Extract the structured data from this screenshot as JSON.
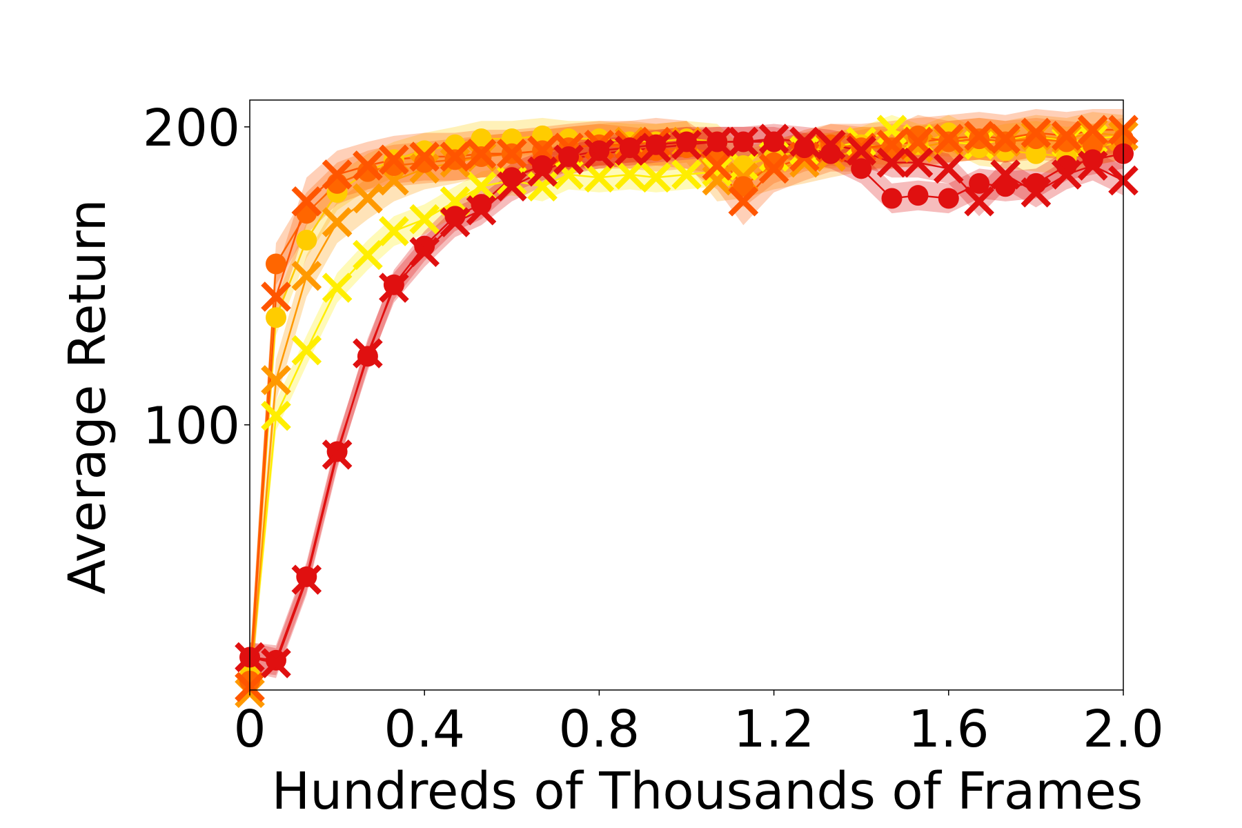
{
  "chart_data": {
    "type": "line",
    "title": "",
    "xlabel": "Hundreds of Thousands of Frames",
    "ylabel": "Average Return",
    "xlim": [
      0,
      2.0
    ],
    "ylim": [
      11,
      209
    ],
    "x_ticks": [
      0,
      0.4,
      0.8,
      1.2,
      1.6,
      2.0
    ],
    "x_tick_labels": [
      "0",
      "0.4",
      "0.8",
      "1.2",
      "1.6",
      "2.0"
    ],
    "y_ticks": [
      100,
      200
    ],
    "y_tick_labels": [
      "100",
      "200"
    ],
    "grid": false,
    "legend": "none",
    "series": [
      {
        "color": "#ffee00",
        "marker": "x",
        "x": [
          0,
          0.06,
          0.13,
          0.2,
          0.27,
          0.33,
          0.4,
          0.47,
          0.53,
          0.6,
          0.67,
          0.73,
          0.8,
          0.87,
          0.93,
          1.0,
          1.07,
          1.13,
          1.2,
          1.27,
          1.33,
          1.4,
          1.47,
          1.53,
          1.6,
          1.67,
          1.73,
          1.8,
          1.87,
          1.93,
          2.0
        ],
        "y": [
          12,
          103,
          125,
          146,
          157,
          165,
          169,
          175,
          180,
          182,
          180,
          184,
          183,
          184,
          183,
          184,
          185,
          187,
          190,
          192,
          193,
          195,
          199,
          196,
          195,
          194,
          196,
          197,
          195,
          196,
          197
        ],
        "band": 5
      },
      {
        "color": "#ffcc00",
        "marker": "o",
        "x": [
          0,
          0.06,
          0.13,
          0.2,
          0.27,
          0.33,
          0.4,
          0.47,
          0.53,
          0.6,
          0.67,
          0.73,
          0.8,
          0.87,
          0.93,
          1.0,
          1.07,
          1.13,
          1.2,
          1.27,
          1.33,
          1.4,
          1.47,
          1.53,
          1.6,
          1.67,
          1.73,
          1.8,
          1.87,
          1.93,
          2.0
        ],
        "y": [
          16,
          136,
          162,
          178,
          185,
          189,
          192,
          194,
          196,
          196,
          197,
          196,
          196,
          195,
          195,
          196,
          195,
          187,
          190,
          192,
          192,
          194,
          193,
          194,
          198,
          193,
          192,
          191,
          190,
          193,
          195
        ],
        "band": 6
      },
      {
        "color": "#ff9900",
        "marker": "x",
        "x": [
          0,
          0.06,
          0.13,
          0.2,
          0.27,
          0.33,
          0.4,
          0.47,
          0.53,
          0.6,
          0.67,
          0.73,
          0.8,
          0.87,
          0.93,
          1.0,
          1.07,
          1.13,
          1.2,
          1.27,
          1.33,
          1.4,
          1.47,
          1.53,
          1.6,
          1.67,
          1.73,
          1.8,
          1.87,
          1.93,
          2.0
        ],
        "y": [
          10,
          115,
          150,
          168,
          176,
          182,
          186,
          188,
          190,
          191,
          192,
          193,
          194,
          195,
          194,
          195,
          182,
          183,
          186,
          188,
          190,
          192,
          194,
          193,
          195,
          196,
          195,
          197,
          196,
          198,
          197
        ],
        "band": 7
      },
      {
        "color": "#ff6600",
        "marker": "o",
        "x": [
          0,
          0.06,
          0.13,
          0.2,
          0.27,
          0.33,
          0.4,
          0.47,
          0.53,
          0.6,
          0.67,
          0.73,
          0.8,
          0.87,
          0.93,
          1.0,
          1.07,
          1.13,
          1.2,
          1.27,
          1.33,
          1.4,
          1.47,
          1.53,
          1.6,
          1.67,
          1.73,
          1.8,
          1.87,
          1.93,
          2.0
        ],
        "y": [
          14,
          154,
          171,
          181,
          185,
          187,
          188,
          189,
          190,
          191,
          192,
          193,
          194,
          193,
          192,
          193,
          191,
          180,
          188,
          192,
          194,
          193,
          193,
          197,
          195,
          196,
          195,
          196,
          195,
          194,
          196
        ],
        "band": 7
      },
      {
        "color": "#ff5500",
        "marker": "x",
        "x": [
          0,
          0.06,
          0.13,
          0.2,
          0.27,
          0.33,
          0.4,
          0.47,
          0.53,
          0.6,
          0.67,
          0.73,
          0.8,
          0.87,
          0.93,
          1.0,
          1.07,
          1.13,
          1.2,
          1.27,
          1.33,
          1.4,
          1.47,
          1.53,
          1.6,
          1.67,
          1.73,
          1.8,
          1.87,
          1.93,
          2.0
        ],
        "y": [
          12,
          143,
          175,
          184,
          187,
          189,
          190,
          190,
          191,
          191,
          192,
          193,
          194,
          194,
          195,
          194,
          187,
          175,
          186,
          190,
          193,
          193,
          194,
          195,
          196,
          197,
          196,
          198,
          197,
          199,
          199
        ],
        "band": 8
      },
      {
        "color": "#e01010",
        "marker": "o",
        "x": [
          0,
          0.06,
          0.13,
          0.2,
          0.27,
          0.33,
          0.4,
          0.47,
          0.53,
          0.6,
          0.67,
          0.73,
          0.8,
          0.87,
          0.93,
          1.0,
          1.07,
          1.13,
          1.2,
          1.27,
          1.33,
          1.4,
          1.47,
          1.53,
          1.6,
          1.67,
          1.73,
          1.8,
          1.87,
          1.93,
          2.0
        ],
        "y": [
          22,
          21,
          49,
          91,
          123,
          147,
          160,
          170,
          174,
          183,
          187,
          190,
          192,
          193,
          194,
          195,
          195,
          195,
          195,
          193,
          191,
          186,
          176,
          177,
          176,
          181,
          180,
          181,
          187,
          189,
          191
        ],
        "band": 5
      },
      {
        "color": "#e01010",
        "marker": "x",
        "x": [
          0,
          0.06,
          0.13,
          0.2,
          0.27,
          0.33,
          0.4,
          0.47,
          0.53,
          0.6,
          0.67,
          0.73,
          0.8,
          0.87,
          0.93,
          1.0,
          1.07,
          1.13,
          1.2,
          1.27,
          1.33,
          1.4,
          1.47,
          1.53,
          1.6,
          1.67,
          1.73,
          1.8,
          1.87,
          1.93,
          2.0
        ],
        "y": [
          22,
          20,
          48,
          90,
          124,
          146,
          158,
          168,
          172,
          180,
          185,
          189,
          191,
          192,
          193,
          194,
          195,
          195,
          196,
          195,
          194,
          192,
          188,
          188,
          186,
          175,
          184,
          178,
          184,
          187,
          182
        ],
        "band": 5
      }
    ]
  }
}
